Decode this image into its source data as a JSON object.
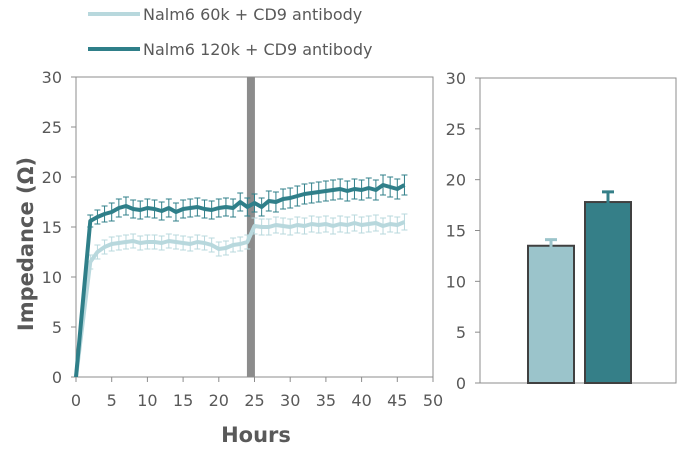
{
  "chart_data": [
    {
      "type": "line",
      "xlabel": "Hours",
      "ylabel": "Impedance (Ω)",
      "xlim": [
        0,
        50
      ],
      "ylim": [
        0,
        30
      ],
      "xticks": [
        "0",
        "5",
        "10",
        "15",
        "20",
        "25",
        "30",
        "35",
        "40",
        "45",
        "50"
      ],
      "yticks": [
        "0",
        "5",
        "10",
        "15",
        "20",
        "25",
        "30"
      ],
      "grid": false,
      "legend_position": "top-left",
      "marker_x": 24.5,
      "marker_color": "#8c8c8c",
      "x": [
        0,
        2,
        3,
        4,
        5,
        6,
        7,
        8,
        9,
        10,
        11,
        12,
        13,
        14,
        15,
        16,
        17,
        18,
        19,
        20,
        21,
        22,
        23,
        24,
        25,
        26,
        27,
        28,
        29,
        30,
        31,
        32,
        33,
        34,
        35,
        36,
        37,
        38,
        39,
        40,
        41,
        42,
        43,
        44,
        45,
        46
      ],
      "series": [
        {
          "name": "Nalm6 60k + CD9 antibody",
          "color": "#b8d8dd",
          "values": [
            0,
            11.5,
            12.5,
            13.0,
            13.3,
            13.4,
            13.5,
            13.6,
            13.4,
            13.5,
            13.5,
            13.4,
            13.6,
            13.5,
            13.4,
            13.3,
            13.5,
            13.4,
            13.2,
            12.8,
            12.9,
            13.2,
            13.3,
            13.5,
            15.1,
            15.0,
            15.0,
            15.2,
            15.1,
            15.0,
            15.2,
            15.1,
            15.3,
            15.2,
            15.3,
            15.1,
            15.3,
            15.2,
            15.4,
            15.2,
            15.3,
            15.4,
            15.1,
            15.3,
            15.2,
            15.5
          ],
          "errors": [
            0,
            0.7,
            0.7,
            0.7,
            0.7,
            0.7,
            0.7,
            0.7,
            0.7,
            0.7,
            0.7,
            0.7,
            0.7,
            0.7,
            0.7,
            0.7,
            0.7,
            0.7,
            0.7,
            0.7,
            0.7,
            0.7,
            0.7,
            0.7,
            0.8,
            0.8,
            0.8,
            0.8,
            0.8,
            0.8,
            0.8,
            0.8,
            0.8,
            0.8,
            0.8,
            0.8,
            0.8,
            0.8,
            0.8,
            0.8,
            0.8,
            0.8,
            0.8,
            0.8,
            0.8,
            0.8
          ]
        },
        {
          "name": "Nalm6 120k + CD9 antibody",
          "color": "#2f7f89",
          "values": [
            0,
            15.6,
            16.0,
            16.3,
            16.5,
            16.9,
            17.1,
            16.8,
            16.7,
            16.9,
            16.8,
            16.6,
            16.9,
            16.5,
            16.8,
            16.9,
            17.0,
            16.8,
            16.7,
            16.9,
            17.0,
            16.9,
            17.5,
            17.0,
            17.4,
            17.0,
            17.6,
            17.5,
            17.8,
            17.9,
            18.1,
            18.3,
            18.4,
            18.5,
            18.6,
            18.7,
            18.8,
            18.6,
            18.8,
            18.7,
            18.9,
            18.7,
            19.2,
            19.0,
            18.8,
            19.2
          ],
          "errors": [
            0,
            0.6,
            0.7,
            0.8,
            0.9,
            0.9,
            0.9,
            0.9,
            0.9,
            0.9,
            0.9,
            0.9,
            0.9,
            0.9,
            0.9,
            0.9,
            0.9,
            0.9,
            0.9,
            0.9,
            0.9,
            0.9,
            0.9,
            0.9,
            0.9,
            0.9,
            1.0,
            1.0,
            1.0,
            1.0,
            1.0,
            1.0,
            1.0,
            1.0,
            1.0,
            1.0,
            1.0,
            1.0,
            1.0,
            1.0,
            1.0,
            1.0,
            1.0,
            1.0,
            1.0,
            1.0
          ]
        }
      ]
    },
    {
      "type": "bar",
      "ylim": [
        0,
        30
      ],
      "yticks": [
        "0",
        "5",
        "10",
        "15",
        "20",
        "25",
        "30"
      ],
      "grid": false,
      "bars": [
        {
          "series": "Nalm6 60k + CD9 antibody",
          "value": 13.5,
          "error": 0.6,
          "color": "#9bc4cb"
        },
        {
          "series": "Nalm6 120k + CD9 antibody",
          "value": 17.8,
          "error": 1.0,
          "color": "#357f88"
        }
      ]
    }
  ]
}
